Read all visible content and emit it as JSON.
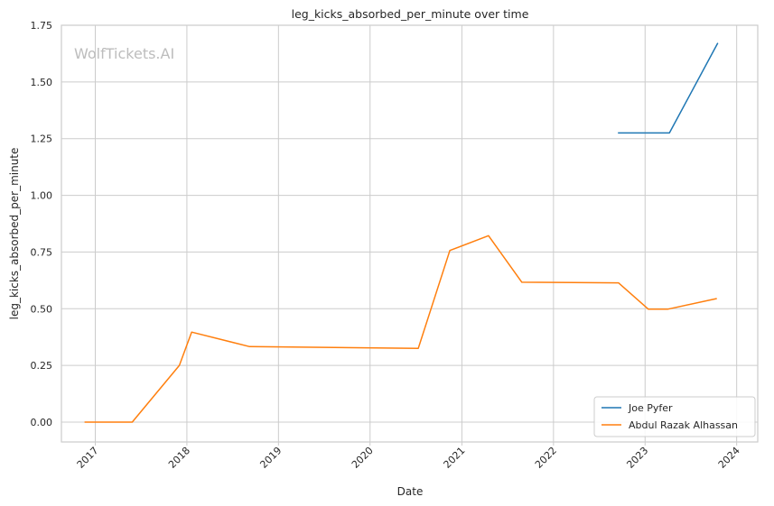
{
  "chart_data": {
    "type": "line",
    "title": "leg_kicks_absorbed_per_minute over time",
    "xlabel": "Date",
    "ylabel": "leg_kicks_absorbed_per_minute",
    "xlim": [
      "2016-08-19",
      "2024-03-25"
    ],
    "ylim": [
      -0.0875,
      1.75
    ],
    "x_ticks": [
      "2017",
      "2018",
      "2019",
      "2020",
      "2021",
      "2022",
      "2023",
      "2024"
    ],
    "y_ticks": [
      "0.00",
      "0.25",
      "0.50",
      "0.75",
      "1.00",
      "1.25",
      "1.50",
      "1.75"
    ],
    "grid": true,
    "legend_position": "lower-right",
    "watermark": "WolfTickets.AI",
    "series": [
      {
        "name": "Joe Pyfer",
        "color": "#1f77b4",
        "x": [
          "2022-09-15",
          "2023-01-01",
          "2023-04-08",
          "2023-10-18"
        ],
        "y": [
          1.275,
          1.275,
          1.275,
          1.672
        ]
      },
      {
        "name": "Abdul Razak Alhassan",
        "color": "#ff7f0e",
        "x": [
          "2016-11-19",
          "2017-05-28",
          "2017-12-02",
          "2018-01-20",
          "2018-09-08",
          "2020-07-11",
          "2020-11-14",
          "2021-04-17",
          "2021-08-28",
          "2022-09-17",
          "2023-01-14",
          "2023-04-01",
          "2023-10-14"
        ],
        "y": [
          0.0,
          0.0,
          0.25,
          0.397,
          0.333,
          0.325,
          0.757,
          0.822,
          0.617,
          0.614,
          0.498,
          0.498,
          0.545
        ]
      }
    ]
  }
}
